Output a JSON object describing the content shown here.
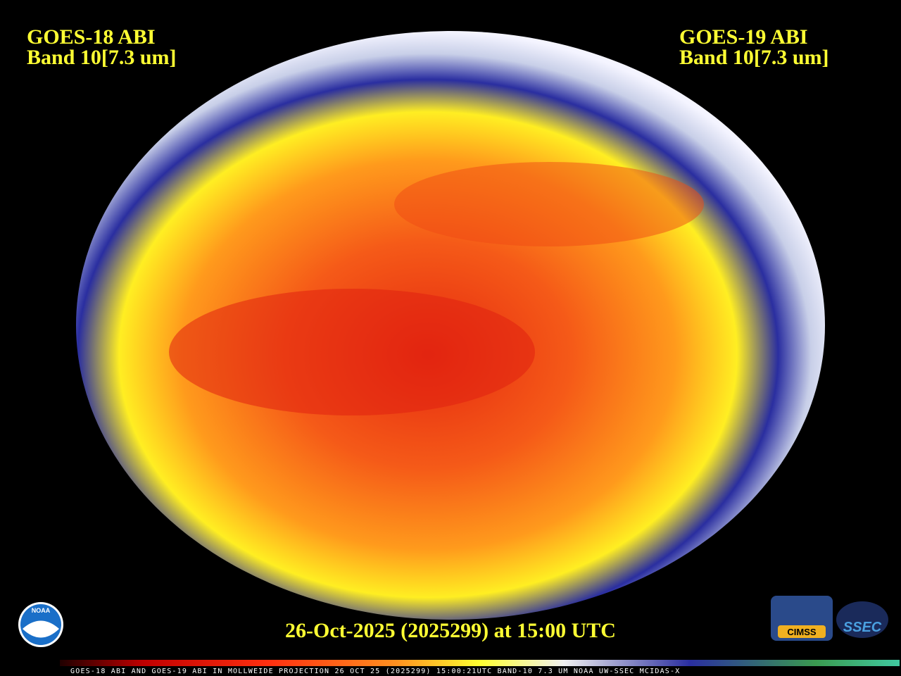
{
  "left_label": {
    "line1": "GOES-18 ABI",
    "line2": "Band 10[7.3 um]"
  },
  "right_label": {
    "line1": "GOES-19 ABI",
    "line2": "Band 10[7.3 um]"
  },
  "timestamp": "26-Oct-2025 (2025299) at 15:00 UTC",
  "footer": "GOES-18 ABI AND GOES-19 ABI IN MOLLWEIDE PROJECTION 26 OCT 25 (2025299) 15:00:21UTC BAND-10 7.3 UM NOAA UW-SSEC MCIDAS-X",
  "logos": {
    "noaa": "NOAA",
    "cimss": "CIMSS",
    "ssec": "SSEC"
  }
}
